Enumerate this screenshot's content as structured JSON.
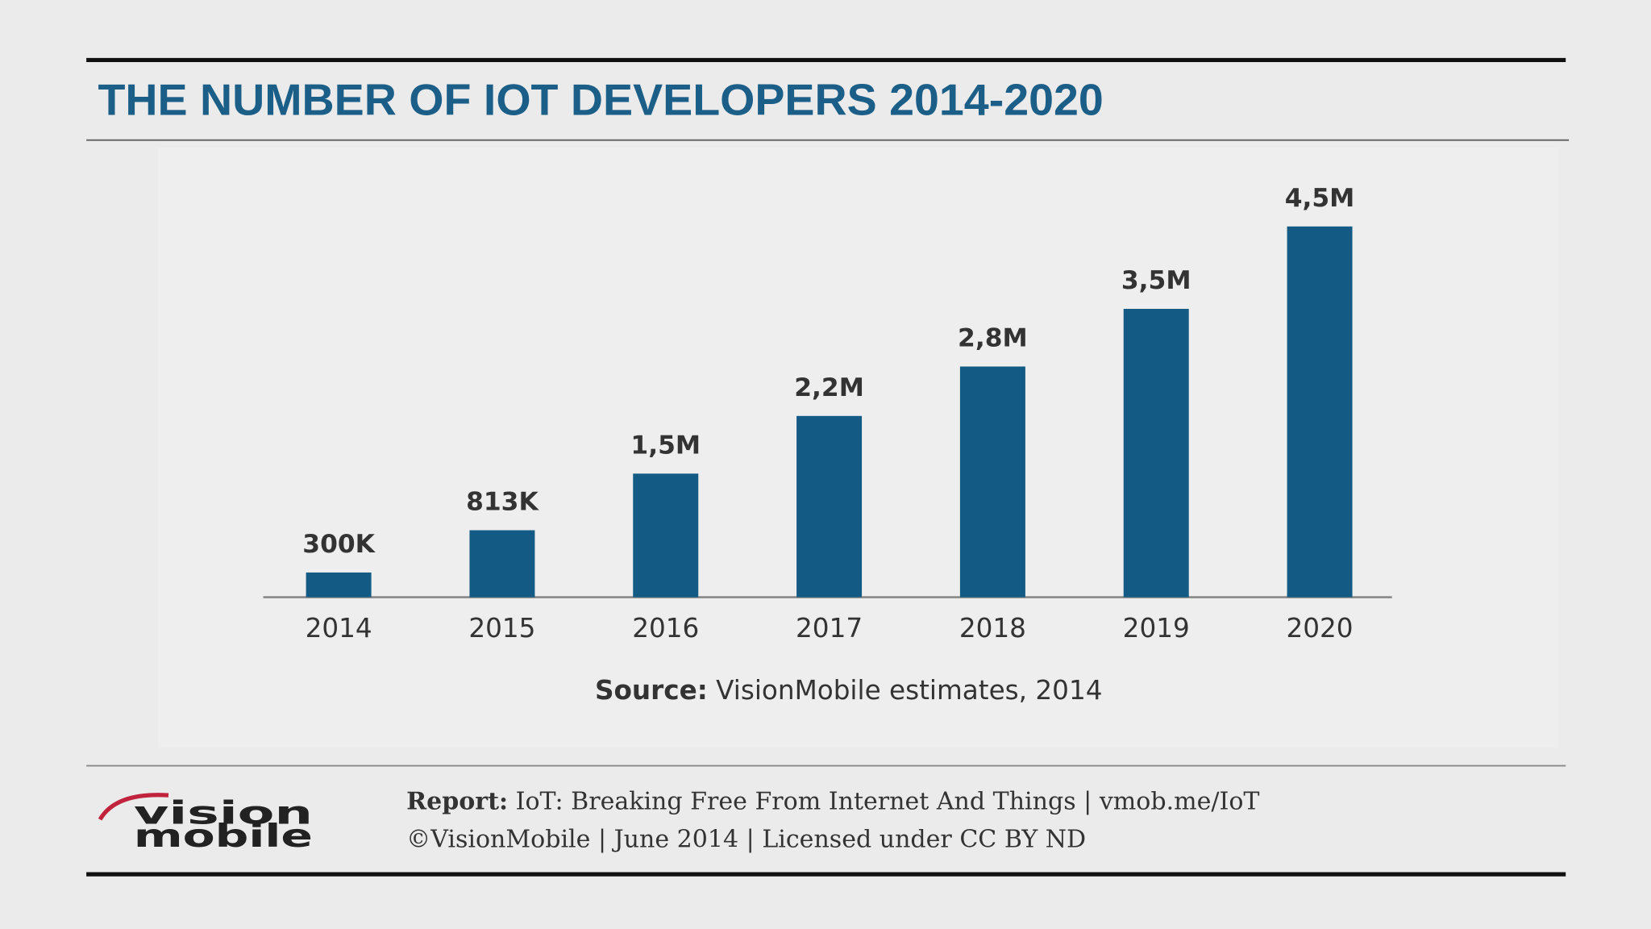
{
  "chart_data": {
    "type": "bar",
    "title": "THE NUMBER OF IOT DEVELOPERS 2014-2020",
    "categories": [
      "2014",
      "2015",
      "2016",
      "2017",
      "2018",
      "2019",
      "2020"
    ],
    "values": [
      300000,
      813000,
      1500000,
      2200000,
      2800000,
      3500000,
      4500000
    ],
    "value_labels": [
      "300K",
      "813K",
      "1,5M",
      "2,2M",
      "2,8M",
      "3,5M",
      "4,5M"
    ],
    "color": "#135a85"
  },
  "source": {
    "label": "Source:",
    "text": "VisionMobile estimates, 2014"
  },
  "footer": {
    "report_label": "Report:",
    "report_text": "IoT: Breaking Free From Internet And Things | vmob.me/IoT",
    "credit": "©VisionMobile | June 2014 | Licensed under CC BY ND"
  },
  "logo": {
    "line1": "vision",
    "line2": "mobile"
  }
}
